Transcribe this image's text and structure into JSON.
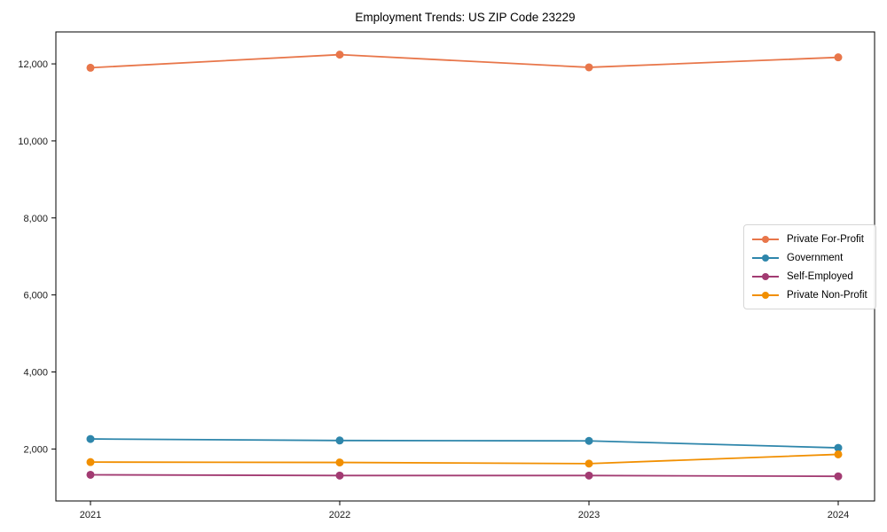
{
  "figure": {
    "title": "Employment Trends: US ZIP Code 23229"
  },
  "chart_data": {
    "type": "line",
    "title": "Employment Trends: US ZIP Code 23229",
    "xlabel": "",
    "ylabel": "",
    "x_tick_labels": [
      "2021",
      "2022",
      "2023",
      "2024"
    ],
    "x": [
      2021,
      2022,
      2023,
      2024
    ],
    "series": [
      {
        "name": "Private For-Profit",
        "color": "#E8764A",
        "values": [
          11900,
          12240,
          11910,
          12170
        ]
      },
      {
        "name": "Government",
        "color": "#2E86AB",
        "values": [
          2260,
          2220,
          2210,
          2030
        ]
      },
      {
        "name": "Self-Employed",
        "color": "#A23B72",
        "values": [
          1330,
          1310,
          1310,
          1290
        ]
      },
      {
        "name": "Private Non-Profit",
        "color": "#F18F01",
        "values": [
          1660,
          1650,
          1620,
          1860
        ]
      }
    ],
    "y_ticks": [
      2000,
      4000,
      6000,
      8000,
      10000,
      12000
    ],
    "y_tick_format": "comma",
    "ylim": [
      650,
      12830
    ],
    "grid": false,
    "legend_position": "center-right",
    "frame": "full-box"
  },
  "style": {
    "axis_color": "#000000",
    "background": "#ffffff",
    "legend_border": "#d6d6d6",
    "marker": "circle"
  }
}
